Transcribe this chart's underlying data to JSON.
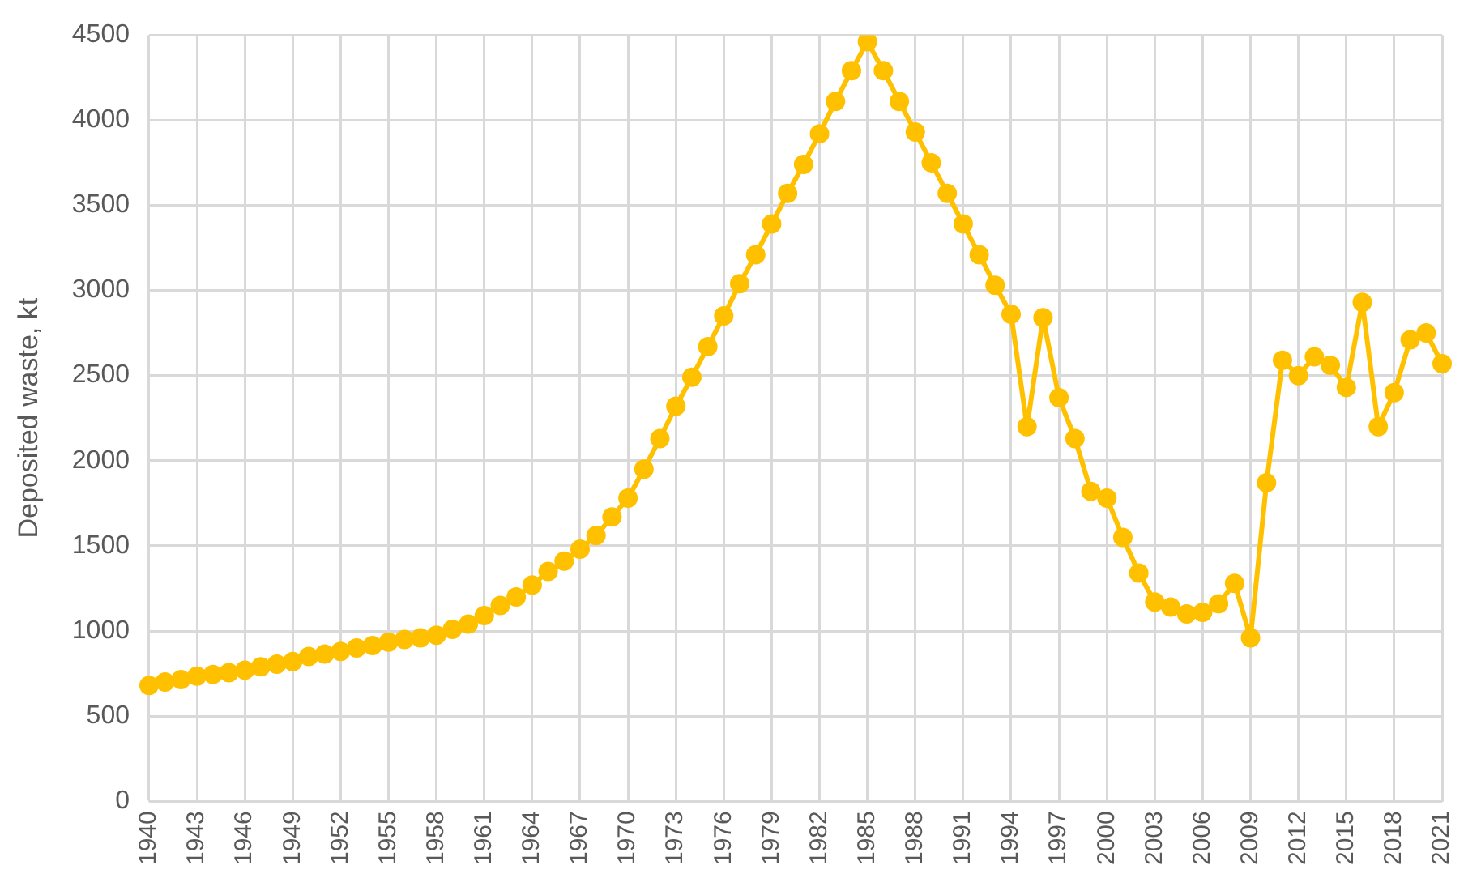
{
  "chart_data": {
    "type": "line",
    "ylabel": "Deposited waste, kt",
    "categories": [
      "1940",
      null,
      null,
      "1943",
      null,
      null,
      "1946",
      null,
      null,
      "1949",
      null,
      null,
      "1952",
      null,
      null,
      "1955",
      null,
      null,
      "1958",
      null,
      null,
      "1961",
      null,
      null,
      "1964",
      null,
      null,
      "1967",
      null,
      null,
      "1970",
      null,
      null,
      "1973",
      null,
      null,
      "1976",
      null,
      null,
      "1979",
      null,
      null,
      "1982",
      null,
      null,
      "1985",
      null,
      null,
      "1988",
      null,
      null,
      "1991",
      null,
      null,
      "1994",
      null,
      null,
      "1997",
      null,
      null,
      "2000",
      null,
      null,
      "2003",
      null,
      null,
      "2006",
      null,
      null,
      "2009",
      null,
      null,
      "2012",
      null,
      null,
      "2015",
      null,
      null,
      "2018",
      null,
      null,
      "2021"
    ],
    "series": [
      {
        "color": "#ffc000",
        "values": [
          680,
          700,
          715,
          735,
          745,
          755,
          770,
          790,
          805,
          820,
          850,
          865,
          880,
          900,
          915,
          935,
          950,
          960,
          975,
          1010,
          1040,
          1090,
          1150,
          1200,
          1270,
          1350,
          1410,
          1480,
          1560,
          1670,
          1780,
          1950,
          2130,
          2320,
          2490,
          2670,
          2850,
          3040,
          3210,
          3390,
          3570,
          3740,
          3920,
          4110,
          4290,
          4460,
          4290,
          4110,
          3930,
          3750,
          3570,
          3390,
          3210,
          3030,
          2860,
          2200,
          2840,
          2370,
          2130,
          1820,
          1780,
          1550,
          1340,
          1170,
          1140,
          1100,
          1110,
          1160,
          1280,
          960,
          1870,
          2590,
          2500,
          2610,
          2560,
          2430,
          2930,
          2200,
          2400,
          2710,
          2750,
          2570
        ]
      }
    ],
    "ylim": [
      0,
      4500
    ],
    "yticks": [
      0,
      500,
      1000,
      1500,
      2000,
      2500,
      3000,
      3500,
      4000,
      4500
    ],
    "grid": true,
    "legend": false,
    "marker": "circle",
    "line_style": "solid"
  }
}
